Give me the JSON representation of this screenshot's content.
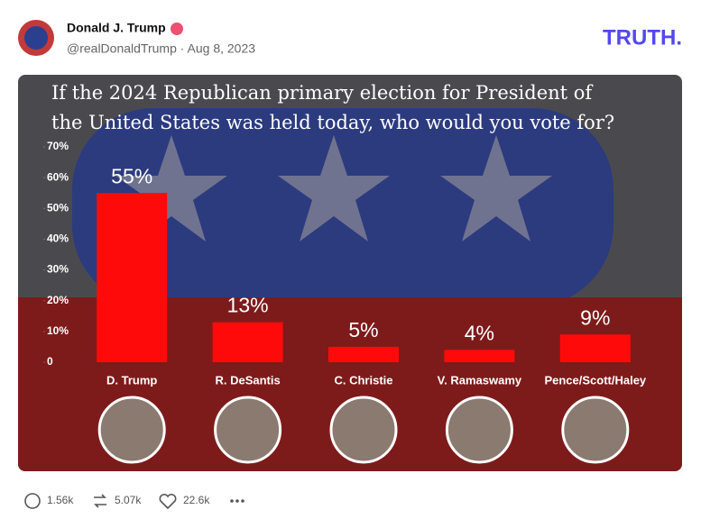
{
  "post": {
    "author": "Donald J. Trump",
    "meta": "@realDonaldTrump · Aug 8, 2023",
    "brand": "TRUTH.",
    "stats": {
      "replies": "1.56k",
      "retruths": "5.07k",
      "likes": "22.6k"
    }
  },
  "chart_data": {
    "type": "bar",
    "title": "If the 2024 Republican primary election for President of the United States was held today, who would you vote for?",
    "categories": [
      "D. Trump",
      "R. DeSantis",
      "C. Christie",
      "V. Ramaswamy",
      "Pence/Scott/Haley"
    ],
    "values": [
      55,
      13,
      5,
      4,
      9
    ],
    "value_labels": [
      "55%",
      "13%",
      "5%",
      "4%",
      "9%"
    ],
    "color": "#ff0a0a",
    "ylim": [
      0,
      70
    ],
    "yticks": [
      0,
      {
        "value": 10,
        "label": "10%"
      },
      {
        "value": 20,
        "label": "20%"
      },
      {
        "value": 30,
        "label": "30%"
      },
      {
        "value": 40,
        "label": "40%"
      },
      {
        "value": 50,
        "label": "50%"
      },
      {
        "value": 60,
        "label": "60%"
      },
      {
        "value": 70,
        "label": "70%"
      }
    ]
  }
}
